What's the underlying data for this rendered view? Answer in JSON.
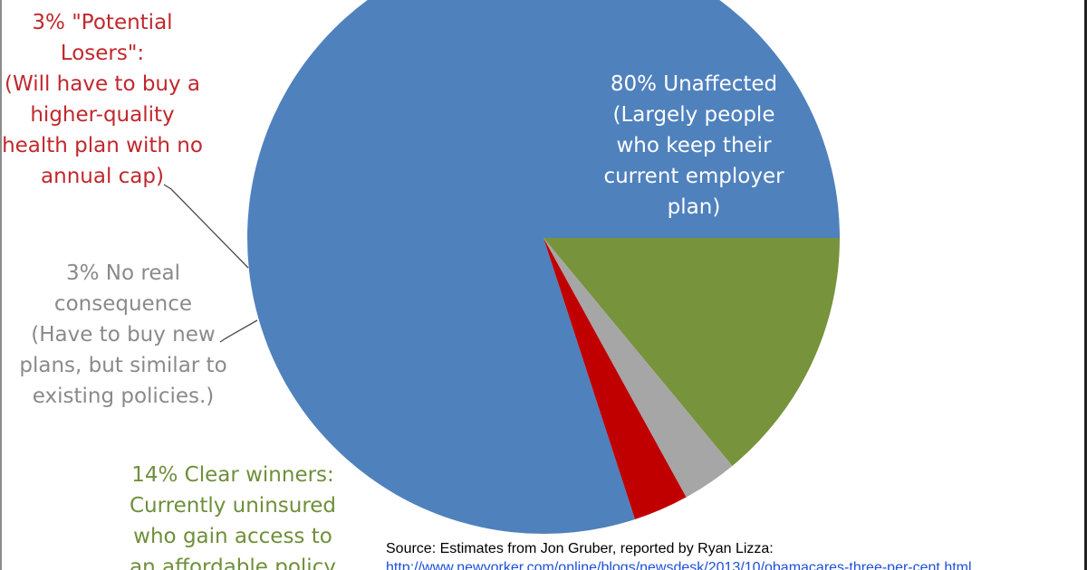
{
  "chart_data": {
    "type": "pie",
    "title": "",
    "slices": [
      {
        "name": "Unaffected",
        "value": 80,
        "color": "#4f81bd"
      },
      {
        "name": "Clear winners",
        "value": 14,
        "color": "#77933c"
      },
      {
        "name": "No real consequence",
        "value": 3,
        "color": "#a6a6a6"
      },
      {
        "name": "Potential Losers",
        "value": 3,
        "color": "#c00000"
      }
    ],
    "labels": {
      "unaffected": {
        "color": "#ffffff",
        "lines": [
          "80% Unaffected",
          "(Largely people",
          "who keep their",
          "current employer",
          "plan)"
        ]
      },
      "losers": {
        "color": "#c0282d",
        "lines": [
          "3% \"Potential",
          "Losers\":",
          "(Will have to buy a",
          "higher-quality",
          "health plan with no",
          "annual cap)"
        ]
      },
      "no_consequence": {
        "color": "#8a8a8a",
        "lines": [
          "3% No real",
          "consequence",
          "(Have to buy new",
          "plans, but similar to",
          "existing policies.)"
        ]
      },
      "winners": {
        "color": "#6f8f3a",
        "lines": [
          "14% Clear winners:",
          "Currently uninsured",
          "who gain access to",
          "an affordable policy"
        ]
      }
    },
    "source": "Source: Estimates from Jon Gruber, reported by Ryan Lizza:",
    "source_url": "http://www.newyorker.com/online/blogs/newsdesk/2013/10/obamacares-three-per-cent.html"
  }
}
